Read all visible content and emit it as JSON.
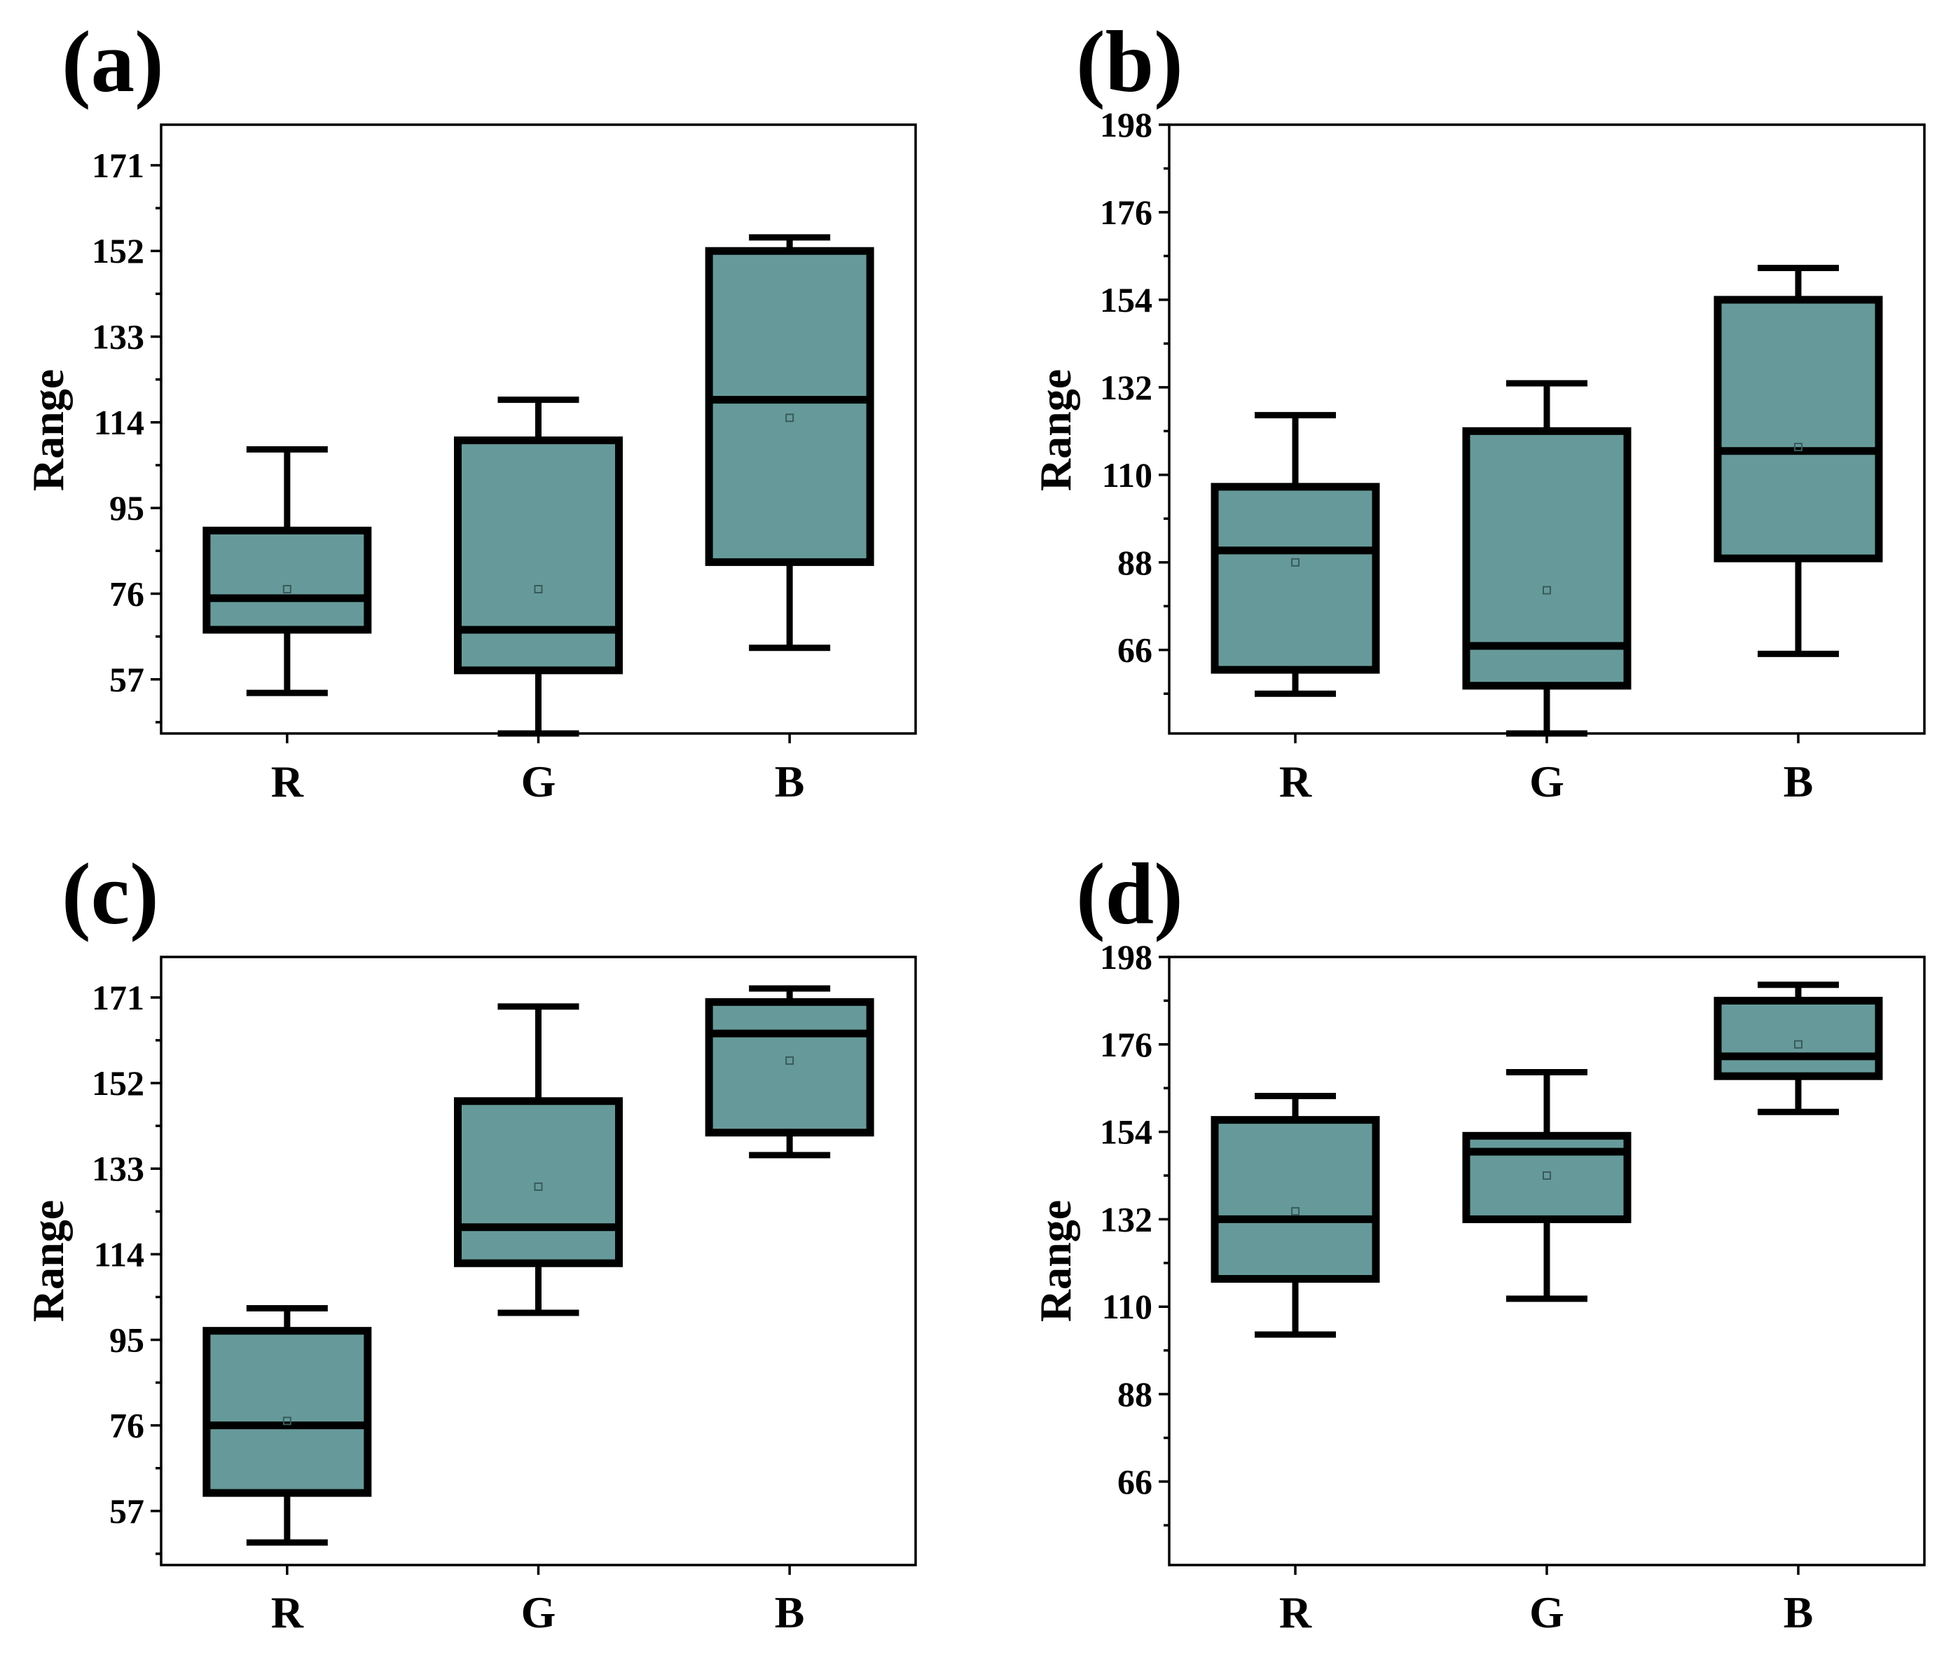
{
  "colors": {
    "box_fill": "#669a9a",
    "stroke": "#000000"
  },
  "chart_data": [
    {
      "id": "a",
      "type": "box",
      "panel_label": "(a)",
      "ylabel": "Range",
      "ylim": [
        45,
        180
      ],
      "yticks": [
        57,
        76,
        95,
        114,
        133,
        152,
        171
      ],
      "yticks_labels": [
        "57",
        "76",
        "95",
        "114",
        "133",
        "152",
        "171"
      ],
      "categories": [
        "R",
        "G",
        "B"
      ],
      "boxes": [
        {
          "name": "R",
          "whisker_low": 54,
          "q1": 68,
          "median": 75,
          "q3": 90,
          "whisker_high": 108,
          "mean": 77
        },
        {
          "name": "G",
          "whisker_low": 45,
          "q1": 59,
          "median": 68,
          "q3": 110,
          "whisker_high": 119,
          "mean": 77
        },
        {
          "name": "B",
          "whisker_low": 64,
          "q1": 83,
          "median": 119,
          "q3": 152,
          "whisker_high": 155,
          "mean": 115
        }
      ]
    },
    {
      "id": "b",
      "type": "box",
      "panel_label": "(b)",
      "ylabel": "Range",
      "ylim": [
        45,
        198
      ],
      "yticks": [
        66,
        88,
        110,
        132,
        154,
        176,
        198
      ],
      "yticks_labels": [
        "66",
        "88",
        "110",
        "132",
        "154",
        "176",
        "198"
      ],
      "categories": [
        "R",
        "G",
        "B"
      ],
      "boxes": [
        {
          "name": "R",
          "whisker_low": 55,
          "q1": 61,
          "median": 91,
          "q3": 107,
          "whisker_high": 125,
          "mean": 88
        },
        {
          "name": "G",
          "whisker_low": 45,
          "q1": 57,
          "median": 67,
          "q3": 121,
          "whisker_high": 133,
          "mean": 81
        },
        {
          "name": "B",
          "whisker_low": 65,
          "q1": 89,
          "median": 116,
          "q3": 154,
          "whisker_high": 162,
          "mean": 117
        }
      ]
    },
    {
      "id": "c",
      "type": "box",
      "panel_label": "(c)",
      "ylabel": "Range",
      "ylim": [
        45,
        180
      ],
      "yticks": [
        57,
        76,
        95,
        114,
        133,
        152,
        171
      ],
      "yticks_labels": [
        "57",
        "76",
        "95",
        "114",
        "133",
        "152",
        "171"
      ],
      "categories": [
        "R",
        "G",
        "B"
      ],
      "boxes": [
        {
          "name": "R",
          "whisker_low": 50,
          "q1": 61,
          "median": 76,
          "q3": 97,
          "whisker_high": 102,
          "mean": 77
        },
        {
          "name": "G",
          "whisker_low": 101,
          "q1": 112,
          "median": 120,
          "q3": 148,
          "whisker_high": 169,
          "mean": 129
        },
        {
          "name": "B",
          "whisker_low": 136,
          "q1": 141,
          "median": 163,
          "q3": 170,
          "whisker_high": 173,
          "mean": 157
        }
      ]
    },
    {
      "id": "d",
      "type": "box",
      "panel_label": "(d)",
      "ylabel": "Range",
      "ylim": [
        45,
        198
      ],
      "yticks": [
        66,
        88,
        110,
        132,
        154,
        176,
        198
      ],
      "yticks_labels": [
        "66",
        "88",
        "110",
        "132",
        "154",
        "176",
        "198"
      ],
      "categories": [
        "R",
        "G",
        "B"
      ],
      "boxes": [
        {
          "name": "R",
          "whisker_low": 103,
          "q1": 117,
          "median": 132,
          "q3": 157,
          "whisker_high": 163,
          "mean": 134
        },
        {
          "name": "G",
          "whisker_low": 112,
          "q1": 132,
          "median": 149,
          "q3": 153,
          "whisker_high": 169,
          "mean": 143
        },
        {
          "name": "B",
          "whisker_low": 159,
          "q1": 168,
          "median": 173,
          "q3": 187,
          "whisker_high": 191,
          "mean": 176
        }
      ]
    }
  ]
}
